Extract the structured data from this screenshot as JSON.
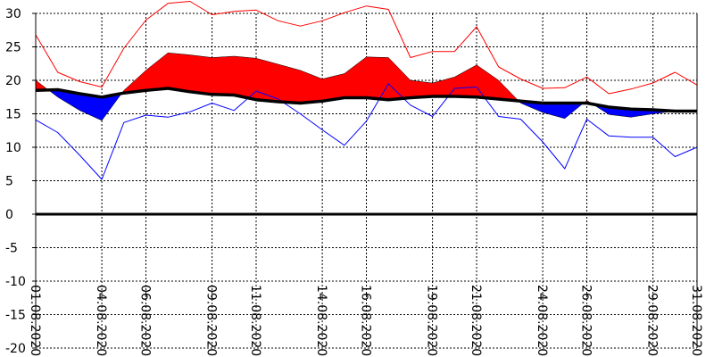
{
  "chart_data": {
    "type": "line",
    "title": "",
    "xlabel": "",
    "ylabel": "",
    "ylim": [
      -20,
      30
    ],
    "yticks": [
      30,
      25,
      20,
      15,
      10,
      5,
      0,
      -5,
      -10,
      -15,
      -20
    ],
    "grid": true,
    "legend": "none",
    "x": [
      "01.08.2020",
      "02.08.2020",
      "03.08.2020",
      "04.08.2020",
      "05.08.2020",
      "06.08.2020",
      "07.08.2020",
      "08.08.2020",
      "09.08.2020",
      "10.08.2020",
      "11.08.2020",
      "12.08.2020",
      "13.08.2020",
      "14.08.2020",
      "15.08.2020",
      "16.08.2020",
      "17.08.2020",
      "18.08.2020",
      "19.08.2020",
      "20.08.2020",
      "21.08.2020",
      "22.08.2020",
      "23.08.2020",
      "24.08.2020",
      "25.08.2020",
      "26.08.2020",
      "27.08.2020",
      "28.08.2020",
      "29.08.2020",
      "30.08.2020",
      "31.08.2020"
    ],
    "x_tick_labels": [
      "01.08.2020",
      "04.08.2020",
      "06.08.2020",
      "09.08.2020",
      "11.08.2020",
      "14.08.2020",
      "16.08.2020",
      "19.08.2020",
      "21.08.2020",
      "24.08.2020",
      "26.08.2020",
      "29.08.2020",
      "31.08.2020"
    ],
    "series": [
      {
        "role": "max",
        "values": [
          26.8,
          21.2,
          19.8,
          19.0,
          24.8,
          29.0,
          31.5,
          31.8,
          29.8,
          30.3,
          30.5,
          28.9,
          28.1,
          28.9,
          30.1,
          31.1,
          30.6,
          23.4,
          24.3,
          24.3,
          28.0,
          22.0,
          20.2,
          18.8,
          18.9,
          20.5,
          18.0,
          18.7,
          19.6,
          21.2,
          19.3
        ]
      },
      {
        "role": "mean",
        "values": [
          20.0,
          17.5,
          15.5,
          14.0,
          18.5,
          21.5,
          24.1,
          23.8,
          23.4,
          23.6,
          23.3,
          22.4,
          21.5,
          20.2,
          21.0,
          23.5,
          23.4,
          20.0,
          19.6,
          20.5,
          22.3,
          20.0,
          16.6,
          15.2,
          14.3,
          17.0,
          14.9,
          14.5,
          15.0,
          15.4,
          15.5
        ]
      },
      {
        "role": "normal",
        "values": [
          18.5,
          18.6,
          18.0,
          17.5,
          18.1,
          18.5,
          18.8,
          18.3,
          17.9,
          17.8,
          17.1,
          16.8,
          16.6,
          16.9,
          17.4,
          17.4,
          17.1,
          17.4,
          17.6,
          17.6,
          17.5,
          17.2,
          16.9,
          16.6,
          16.6,
          16.6,
          16.0,
          15.7,
          15.6,
          15.4,
          15.4
        ]
      },
      {
        "role": "min",
        "values": [
          14.1,
          12.2,
          8.8,
          5.2,
          13.7,
          14.8,
          14.5,
          15.3,
          16.6,
          15.5,
          18.4,
          17.2,
          15.0,
          12.6,
          10.3,
          13.9,
          19.5,
          16.3,
          14.6,
          18.8,
          19.0,
          14.6,
          14.2,
          10.8,
          6.8,
          14.2,
          11.7,
          11.5,
          11.5,
          8.6,
          10.0
        ]
      }
    ],
    "colors": {
      "max_line": "#ff0000",
      "min_line": "#0000ff",
      "above_fill": "#ff0000",
      "below_fill": "#0000ff",
      "normal_line": "#000000",
      "zero_line": "#000000",
      "grid": "#000000"
    }
  }
}
